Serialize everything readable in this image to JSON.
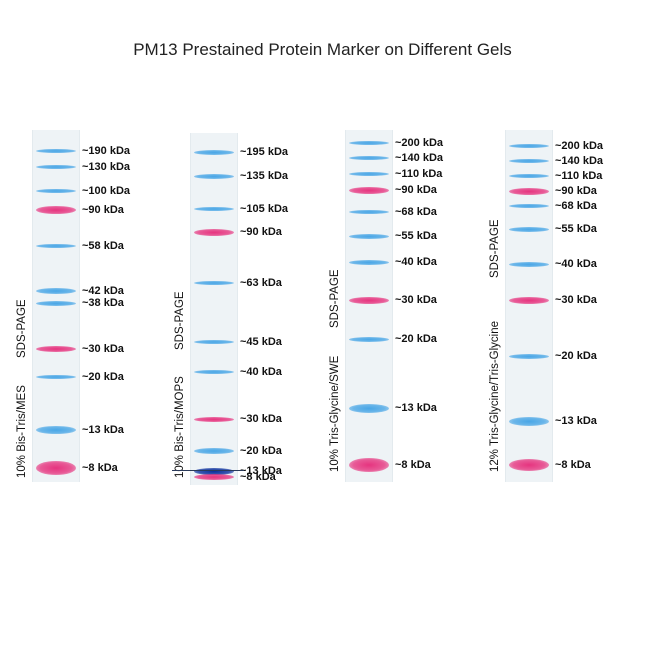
{
  "title": "PM13 Prestained Protein Marker on Different Gels",
  "colors": {
    "blue": "#49a6e6",
    "pink": "#e6347f",
    "dark_blue": "#0a2f9c",
    "lane": "#eef3f6"
  },
  "gels": [
    {
      "gel_type": "SDS-PAGE",
      "gel_name": "10% Bis-Tris/MES",
      "bands": [
        {
          "label": "~190 kDa",
          "color": "blue"
        },
        {
          "label": "~130 kDa",
          "color": "blue"
        },
        {
          "label": "~100 kDa",
          "color": "blue"
        },
        {
          "label": "~90 kDa",
          "color": "pink"
        },
        {
          "label": "~58 kDa",
          "color": "blue"
        },
        {
          "label": "~42 kDa",
          "color": "blue"
        },
        {
          "label": "~38 kDa",
          "color": "blue"
        },
        {
          "label": "~30 kDa",
          "color": "pink"
        },
        {
          "label": "~20 kDa",
          "color": "blue"
        },
        {
          "label": "~13 kDa",
          "color": "blue"
        },
        {
          "label": "~8 kDa",
          "color": "pink"
        }
      ]
    },
    {
      "gel_type": "SDS-PAGE",
      "gel_name": "10% Bis-Tris/MOPS",
      "bands": [
        {
          "label": "~195 kDa",
          "color": "blue"
        },
        {
          "label": "~135 kDa",
          "color": "blue"
        },
        {
          "label": "~105 kDa",
          "color": "blue"
        },
        {
          "label": "~90 kDa",
          "color": "pink"
        },
        {
          "label": "~63 kDa",
          "color": "blue"
        },
        {
          "label": "~45 kDa",
          "color": "blue"
        },
        {
          "label": "~40 kDa",
          "color": "blue"
        },
        {
          "label": "~30 kDa",
          "color": "pink"
        },
        {
          "label": "~20 kDa",
          "color": "blue"
        },
        {
          "label": "~13 kDa",
          "color": "dark_blue"
        },
        {
          "label": "~8 kDa",
          "color": "pink"
        }
      ]
    },
    {
      "gel_type": "SDS-PAGE",
      "gel_name": "10% Tris-Glycine/SWE",
      "bands": [
        {
          "label": "~200 kDa",
          "color": "blue"
        },
        {
          "label": "~140 kDa",
          "color": "blue"
        },
        {
          "label": "~110 kDa",
          "color": "blue"
        },
        {
          "label": "~90 kDa",
          "color": "pink"
        },
        {
          "label": "~68 kDa",
          "color": "blue"
        },
        {
          "label": "~55 kDa",
          "color": "blue"
        },
        {
          "label": "~40 kDa",
          "color": "blue"
        },
        {
          "label": "~30 kDa",
          "color": "pink"
        },
        {
          "label": "~20 kDa",
          "color": "blue"
        },
        {
          "label": "~13 kDa",
          "color": "blue"
        },
        {
          "label": "~8 kDa",
          "color": "pink"
        }
      ]
    },
    {
      "gel_type": "SDS-PAGE",
      "gel_name": "12% Tris-Glycine/Tris-Glycine",
      "bands": [
        {
          "label": "~200 kDa",
          "color": "blue"
        },
        {
          "label": "~140 kDa",
          "color": "blue"
        },
        {
          "label": "~110 kDa",
          "color": "blue"
        },
        {
          "label": "~90 kDa",
          "color": "pink"
        },
        {
          "label": "~68 kDa",
          "color": "blue"
        },
        {
          "label": "~55 kDa",
          "color": "blue"
        },
        {
          "label": "~40 kDa",
          "color": "blue"
        },
        {
          "label": "~30 kDa",
          "color": "pink"
        },
        {
          "label": "~20 kDa",
          "color": "blue"
        },
        {
          "label": "~13 kDa",
          "color": "blue"
        },
        {
          "label": "~8 kDa",
          "color": "pink"
        }
      ]
    }
  ]
}
